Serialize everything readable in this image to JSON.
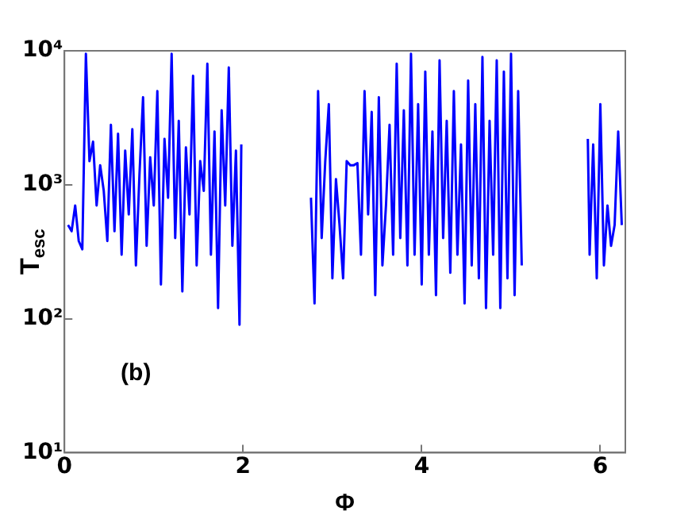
{
  "chart_data": {
    "type": "line",
    "xlabel": "Φ",
    "ylabel": "T$_{esc}$",
    "annotations": [
      "(b)"
    ],
    "log": "y",
    "grid": false,
    "legend": false,
    "marker": "none",
    "line_style": "solid",
    "xlim": [
      0,
      6.28
    ],
    "xticks": [
      0,
      2,
      4,
      6
    ],
    "ylim": [
      10,
      10000
    ],
    "yticks": [
      {
        "value": 10,
        "label": "10¹"
      },
      {
        "value": 100,
        "label": "10²"
      },
      {
        "value": 1000,
        "label": "10³"
      },
      {
        "value": 10000,
        "label": "10⁴"
      }
    ],
    "series": [
      {
        "color": "#0000ff",
        "x": [
          0.04,
          0.08,
          0.12,
          0.16,
          0.2,
          0.24,
          0.28,
          0.32,
          0.36,
          0.4,
          0.44,
          0.48,
          0.52,
          0.56,
          0.6,
          0.64,
          0.68,
          0.72,
          0.76,
          0.8,
          0.84,
          0.88,
          0.92,
          0.96,
          1.0,
          1.04,
          1.08,
          1.12,
          1.16,
          1.2,
          1.24,
          1.28,
          1.32,
          1.36,
          1.4,
          1.44,
          1.48,
          1.52,
          1.56,
          1.6,
          1.64,
          1.68,
          1.72,
          1.76,
          1.8,
          1.84,
          1.88,
          1.92,
          1.96,
          1.98,
          2.3,
          2.76,
          2.8,
          2.84,
          2.88,
          2.92,
          2.96,
          3.0,
          3.04,
          3.08,
          3.12,
          3.16,
          3.2,
          3.24,
          3.28,
          3.32,
          3.36,
          3.4,
          3.44,
          3.48,
          3.52,
          3.56,
          3.6,
          3.64,
          3.68,
          3.72,
          3.76,
          3.8,
          3.84,
          3.88,
          3.92,
          3.96,
          4.0,
          4.04,
          4.08,
          4.12,
          4.16,
          4.2,
          4.24,
          4.28,
          4.32,
          4.36,
          4.4,
          4.44,
          4.48,
          4.52,
          4.56,
          4.6,
          4.64,
          4.68,
          4.72,
          4.76,
          4.8,
          4.84,
          4.88,
          4.92,
          4.96,
          5.0,
          5.04,
          5.08,
          5.12,
          5.5,
          5.86,
          5.88,
          5.92,
          5.96,
          6.0,
          6.04,
          6.08,
          6.12,
          6.16,
          6.2,
          6.24
        ],
        "values": [
          500,
          450,
          700,
          380,
          330,
          9500,
          1500,
          2100,
          700,
          1400,
          900,
          380,
          2800,
          450,
          2400,
          300,
          1800,
          600,
          2600,
          250,
          1200,
          4500,
          350,
          1600,
          700,
          5000,
          180,
          2200,
          800,
          9500,
          400,
          3000,
          160,
          1900,
          600,
          6500,
          250,
          1500,
          900,
          8000,
          300,
          2500,
          120,
          3600,
          700,
          7500,
          350,
          1800,
          90,
          2000,
          null,
          800,
          130,
          5000,
          400,
          1500,
          4000,
          200,
          1100,
          500,
          200,
          1500,
          1400,
          1400,
          1450,
          300,
          5000,
          600,
          3500,
          150,
          4500,
          250,
          700,
          2800,
          300,
          8000,
          400,
          3600,
          250,
          9500,
          300,
          4000,
          180,
          7000,
          300,
          2500,
          150,
          8500,
          400,
          3000,
          220,
          5000,
          300,
          2000,
          130,
          6000,
          250,
          4000,
          200,
          9000,
          120,
          3000,
          300,
          8500,
          120,
          7000,
          200,
          9500,
          150,
          5000,
          250,
          null,
          2200,
          300,
          2000,
          200,
          4000,
          250,
          700,
          350,
          500,
          2500,
          500
        ]
      }
    ]
  }
}
